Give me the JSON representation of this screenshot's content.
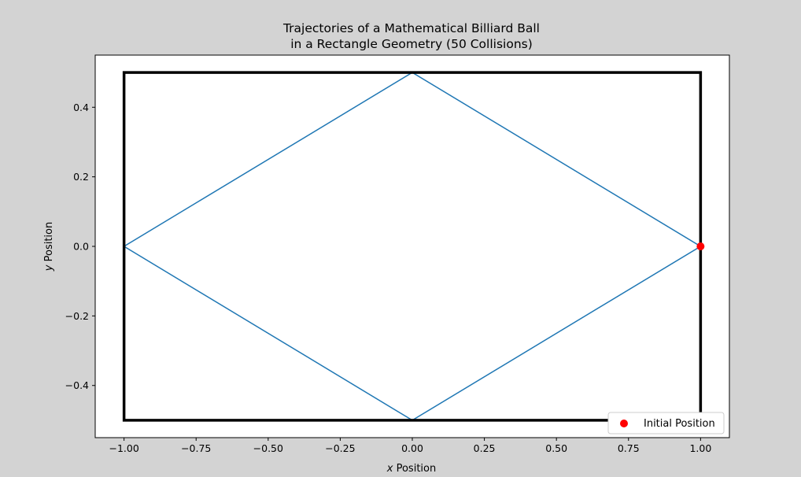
{
  "chart_data": {
    "type": "line",
    "title_lines": [
      "Trajectories of a Mathematical Billiard Ball",
      "in a Rectangle Geometry (50 Collisions)"
    ],
    "xlabel_var": "x",
    "xlabel_rest": " Position",
    "ylabel_var": "y",
    "ylabel_rest": " Position",
    "xlim": [
      -1.1,
      1.1
    ],
    "ylim": [
      -0.55,
      0.55
    ],
    "x_ticks": [
      -1.0,
      -0.75,
      -0.5,
      -0.25,
      0.0,
      0.25,
      0.5,
      0.75,
      1.0
    ],
    "x_tick_labels": [
      "−1.00",
      "−0.75",
      "−0.50",
      "−0.25",
      "0.00",
      "0.25",
      "0.50",
      "0.75",
      "1.00"
    ],
    "y_ticks": [
      -0.4,
      -0.2,
      0.0,
      0.2,
      0.4
    ],
    "y_tick_labels": [
      "−0.4",
      "−0.2",
      "0.0",
      "0.2",
      "0.4"
    ],
    "boundary": {
      "x": [
        -1,
        1
      ],
      "y": [
        -0.5,
        0.5
      ],
      "color": "#000000"
    },
    "trajectory": {
      "color": "#1f77b4",
      "start": [
        1.0,
        0.0
      ],
      "velocity": [
        -0.8944,
        -0.4472
      ],
      "collisions": 50
    },
    "initial_point": {
      "name": "Initial Position",
      "x": 1.0,
      "y": 0.0,
      "color": "#ff0000"
    },
    "legend_position": "lower-right"
  }
}
